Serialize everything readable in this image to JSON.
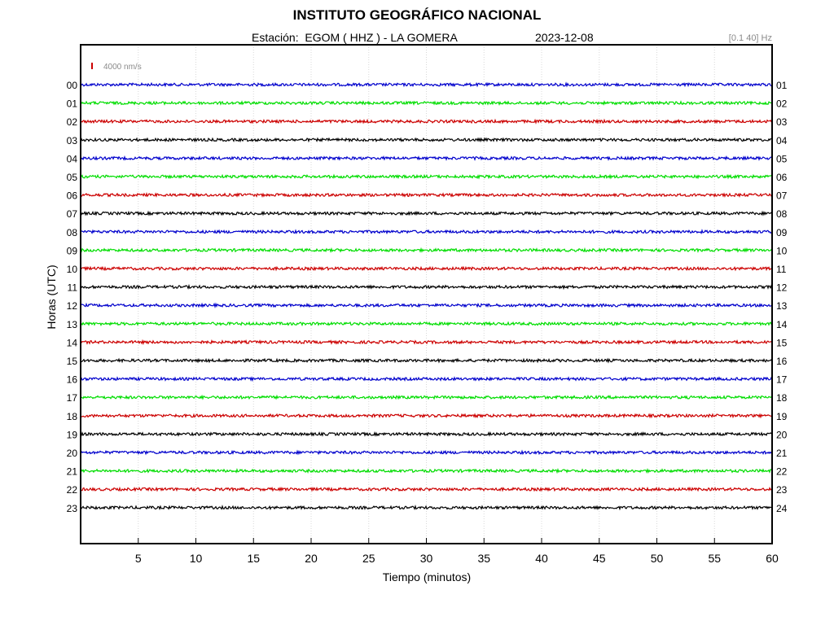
{
  "header": {
    "title": "INSTITUTO GEOGRÁFICO NACIONAL",
    "station_label": "Estación:",
    "station": "EGOM ( HHZ ) - LA GOMERA",
    "date": "2023-12-08",
    "filter": "[0.1 40] Hz"
  },
  "chart_data": {
    "type": "line",
    "title": "INSTITUTO GEOGRÁFICO NACIONAL",
    "xlabel": "Tiempo (minutos)",
    "ylabel": "Horas (UTC)",
    "xlim": [
      0,
      60
    ],
    "x_ticks": [
      "5",
      "10",
      "15",
      "20",
      "25",
      "30",
      "35",
      "40",
      "45",
      "50",
      "55",
      "60"
    ],
    "left_hour_labels": [
      "00",
      "01",
      "02",
      "03",
      "04",
      "05",
      "06",
      "07",
      "08",
      "09",
      "10",
      "11",
      "12",
      "13",
      "14",
      "15",
      "16",
      "17",
      "18",
      "19",
      "20",
      "21",
      "22",
      "23"
    ],
    "right_hour_labels": [
      "01",
      "02",
      "03",
      "04",
      "05",
      "06",
      "07",
      "08",
      "09",
      "10",
      "11",
      "12",
      "13",
      "14",
      "15",
      "16",
      "17",
      "18",
      "19",
      "20",
      "21",
      "22",
      "23",
      "24"
    ],
    "trace_colors": [
      "#0000cc",
      "#00dd00",
      "#cc0000",
      "#000000"
    ],
    "scale_bar": {
      "label": "4000 nm/s",
      "color": "#cc0000"
    },
    "grid": "vertical-dotted"
  }
}
